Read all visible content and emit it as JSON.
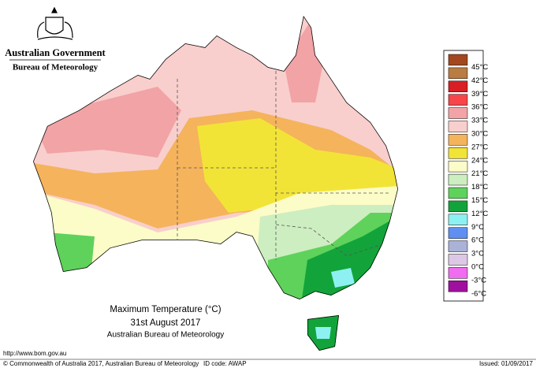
{
  "header": {
    "title": "Australian Government",
    "subtitle": "Bureau of Meteorology"
  },
  "map": {
    "title": "Maximum Temperature (°C)",
    "date": "31st August 2017",
    "source": "Australian Bureau of Meteorology"
  },
  "legend": [
    {
      "label": "45°C",
      "color": "#a3471f"
    },
    {
      "label": "42°C",
      "color": "#b97c42"
    },
    {
      "label": "39°C",
      "color": "#d91e24"
    },
    {
      "label": "36°C",
      "color": "#f7454a"
    },
    {
      "label": "33°C",
      "color": "#f2a3a6"
    },
    {
      "label": "30°C",
      "color": "#f8cfcd"
    },
    {
      "label": "27°C",
      "color": "#f5b35c"
    },
    {
      "label": "24°C",
      "color": "#f2e437"
    },
    {
      "label": "21°C",
      "color": "#fcfcc8"
    },
    {
      "label": "18°C",
      "color": "#cdeec0"
    },
    {
      "label": "15°C",
      "color": "#5fd25c"
    },
    {
      "label": "12°C",
      "color": "#12a43a"
    },
    {
      "label": "9°C",
      "color": "#8ef1f1"
    },
    {
      "label": "6°C",
      "color": "#5f8ff0"
    },
    {
      "label": "3°C",
      "color": "#aab2d8"
    },
    {
      "label": "0°C",
      "color": "#dcc8e6"
    },
    {
      "label": "-3°C",
      "color": "#f06cf0"
    },
    {
      "label": "-6°C",
      "color": "#a0109e"
    }
  ],
  "footer": {
    "url": "http://www.bom.gov.au",
    "copyright": "© Commonwealth of Australia 2017, Australian Bureau of Meteorology",
    "id_code": "ID code: AWAP",
    "issued": "Issued: 01/09/2017"
  }
}
